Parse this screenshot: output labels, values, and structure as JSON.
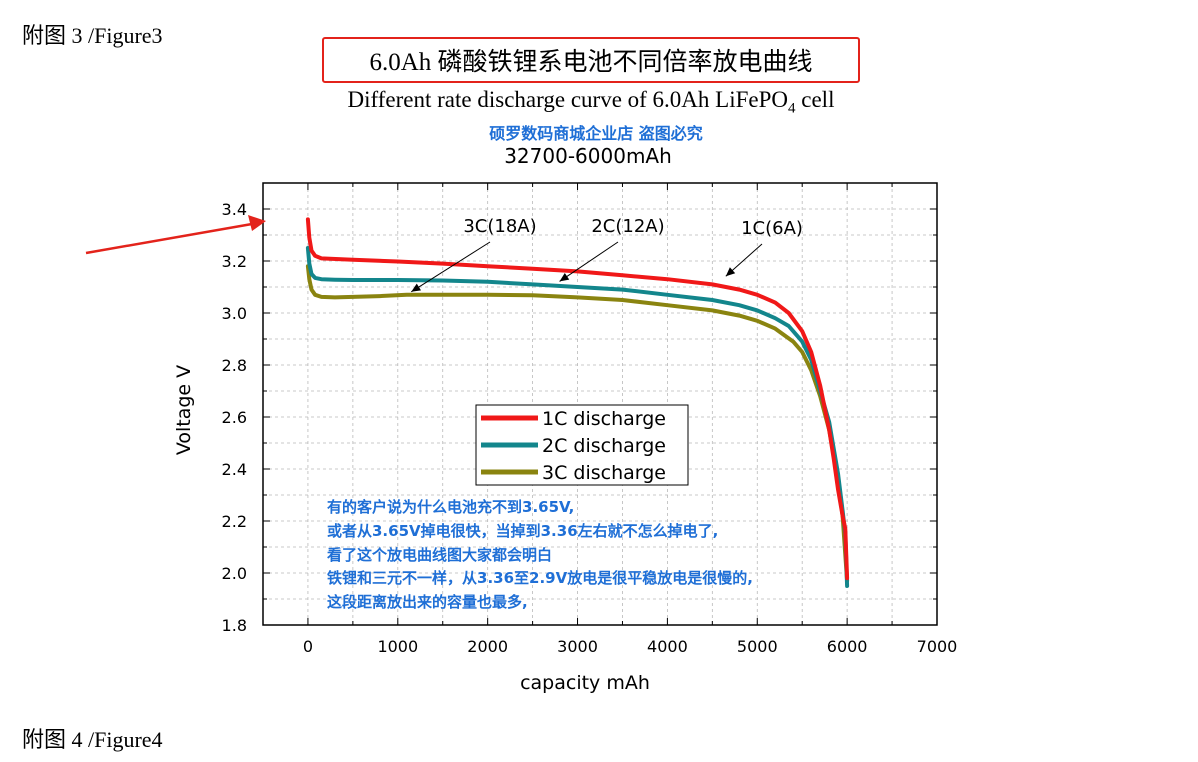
{
  "figure_labels": {
    "top": "附图 3 /Figure3",
    "bottom": "附图 4 /Figure4"
  },
  "title_cn": "6.0Ah 磷酸铁锂系电池不同倍率放电曲线",
  "title_en_main": "Different rate discharge curve of 6.0Ah LiFePO",
  "title_en_sub": "4",
  "title_en_tail": " cell",
  "watermark": "硕罗数码商城企业店 盗图必究",
  "model": "32700-6000mAh",
  "note_lines": [
    "有的客户说为什么电池充不到3.65V,",
    "或者从3.65V掉电很快，当掉到3.36左右就不怎么掉电了,",
    "看了这个放电曲线图大家都会明白",
    "铁锂和三元不一样，从3.36至2.9V放电是很平稳放电是很慢的,",
    "这段距离放出来的容量也最多,"
  ],
  "colors": {
    "title_border": "#e3231b",
    "watermark": "#1f6fd6",
    "arrow": "#e3231b"
  },
  "chart_data": {
    "type": "line",
    "xlabel": "capacity  mAh",
    "ylabel": "Voltage  V",
    "xlim": [
      -500,
      7000
    ],
    "ylim": [
      1.8,
      3.5
    ],
    "xticks": [
      0,
      1000,
      2000,
      3000,
      4000,
      5000,
      6000,
      7000
    ],
    "yticks": [
      1.8,
      2.0,
      2.2,
      2.4,
      2.6,
      2.8,
      3.0,
      3.2,
      3.4
    ],
    "ytick_labels": [
      "1.8",
      "2.0",
      "2.2",
      "2.4",
      "2.6",
      "2.8",
      "3.0",
      "3.2",
      "3.4"
    ],
    "grid": true,
    "legend_position": "center",
    "series": [
      {
        "name": "1C discharge",
        "color": "#f01818",
        "x": [
          0,
          15,
          40,
          80,
          150,
          500,
          1000,
          1500,
          2000,
          2500,
          3000,
          3500,
          4000,
          4500,
          4800,
          5000,
          5200,
          5350,
          5500,
          5600,
          5700,
          5800,
          5850,
          5900,
          5950,
          5980,
          6000
        ],
        "y": [
          3.36,
          3.29,
          3.24,
          3.22,
          3.21,
          3.205,
          3.198,
          3.19,
          3.18,
          3.17,
          3.16,
          3.145,
          3.13,
          3.11,
          3.09,
          3.07,
          3.04,
          3.0,
          2.93,
          2.85,
          2.72,
          2.55,
          2.44,
          2.32,
          2.22,
          2.17,
          1.98
        ]
      },
      {
        "name": "2C discharge",
        "color": "#13868c",
        "x": [
          0,
          15,
          40,
          80,
          150,
          300,
          500,
          1000,
          1500,
          2000,
          2500,
          3000,
          3500,
          4000,
          4500,
          4800,
          5000,
          5200,
          5350,
          5500,
          5600,
          5700,
          5800,
          5900,
          5950,
          5980,
          6000
        ],
        "y": [
          3.25,
          3.19,
          3.15,
          3.135,
          3.13,
          3.128,
          3.127,
          3.127,
          3.125,
          3.12,
          3.11,
          3.1,
          3.09,
          3.07,
          3.05,
          3.03,
          3.01,
          2.98,
          2.95,
          2.89,
          2.82,
          2.7,
          2.58,
          2.38,
          2.24,
          2.15,
          1.95
        ]
      },
      {
        "name": "3C discharge",
        "color": "#8a8410",
        "x": [
          0,
          15,
          40,
          80,
          150,
          300,
          500,
          800,
          1100,
          1500,
          2000,
          2500,
          3000,
          3500,
          4000,
          4500,
          4800,
          5000,
          5200,
          5400,
          5500,
          5600,
          5700,
          5800,
          5900,
          5950,
          6000
        ],
        "y": [
          3.18,
          3.13,
          3.09,
          3.07,
          3.062,
          3.06,
          3.062,
          3.065,
          3.07,
          3.07,
          3.07,
          3.068,
          3.06,
          3.05,
          3.03,
          3.01,
          2.99,
          2.97,
          2.94,
          2.89,
          2.85,
          2.78,
          2.68,
          2.55,
          2.36,
          2.22,
          1.97
        ]
      }
    ],
    "annotations": [
      {
        "text": "3C(18A)",
        "series": 2,
        "x": 1150,
        "y": 3.07
      },
      {
        "text": "2C(12A)",
        "series": 1,
        "x": 2800,
        "y": 3.11
      },
      {
        "text": "1C(6A)",
        "series": 0,
        "x": 4650,
        "y": 3.13
      }
    ]
  }
}
